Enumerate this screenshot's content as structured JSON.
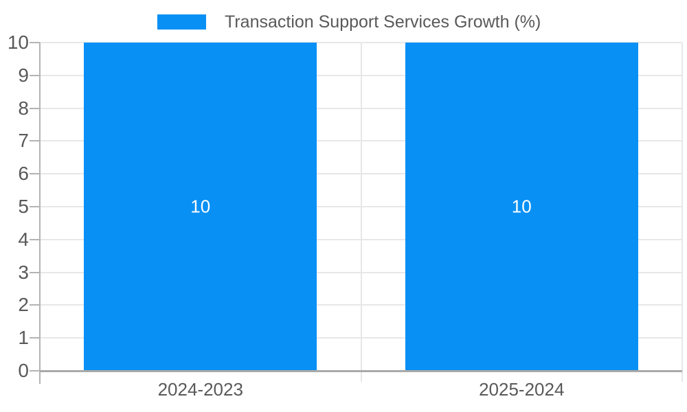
{
  "legend": {
    "label": "Transaction Support Services Growth (%)"
  },
  "chart_data": {
    "type": "bar",
    "title": "Transaction Support Services Growth (%)",
    "categories": [
      "2024-2023",
      "2025-2024"
    ],
    "series": [
      {
        "name": "Transaction Support Services Growth (%)",
        "values": [
          10,
          10
        ]
      }
    ],
    "value_labels": [
      "10",
      "10"
    ],
    "xlabel": "",
    "ylabel": "",
    "ylim": [
      0,
      10
    ],
    "yticks": [
      0,
      1,
      2,
      3,
      4,
      5,
      6,
      7,
      8,
      9,
      10
    ],
    "grid": true,
    "legend_position": "top",
    "colors": {
      "bar": "#0890F5",
      "text": "#595959",
      "value_text": "#ffffff",
      "gridline": "#e7e7e7",
      "axis": "#b3b3b3",
      "baseline": "#a9a9a9"
    }
  }
}
